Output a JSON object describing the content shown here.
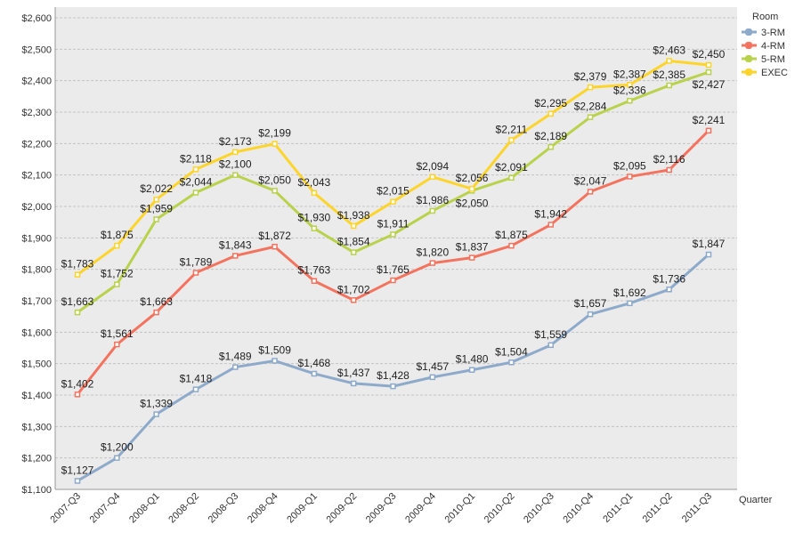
{
  "chart_data": {
    "type": "line",
    "title": "",
    "xlabel": "Quarter",
    "ylabel": "",
    "ylim": [
      1100,
      2600
    ],
    "ytick_step": 100,
    "grid": true,
    "legend_placement": "right",
    "legend_title": "Room",
    "categories": [
      "2007-Q3",
      "2007-Q4",
      "2008-Q1",
      "2008-Q2",
      "2008-Q3",
      "2008-Q4",
      "2009-Q1",
      "2009-Q2",
      "2009-Q3",
      "2009-Q4",
      "2010-Q1",
      "2010-Q2",
      "2010-Q3",
      "2010-Q4",
      "2011-Q1",
      "2011-Q2",
      "2011-Q3"
    ],
    "series": [
      {
        "name": "3-RM",
        "color": "#8eaacb",
        "values": [
          1127,
          1200,
          1339,
          1418,
          1489,
          1509,
          1468,
          1437,
          1428,
          1457,
          1480,
          1504,
          1559,
          1657,
          1692,
          1736,
          1847
        ]
      },
      {
        "name": "4-RM",
        "color": "#f4735f",
        "values": [
          1402,
          1561,
          1663,
          1789,
          1843,
          1872,
          1763,
          1702,
          1765,
          1820,
          1837,
          1875,
          1942,
          2047,
          2095,
          2116,
          2241
        ]
      },
      {
        "name": "5-RM",
        "color": "#b8d24c",
        "values": [
          1663,
          1752,
          1959,
          2044,
          2100,
          2050,
          1930,
          1854,
          1911,
          1986,
          2050,
          2091,
          2189,
          2284,
          2336,
          2385,
          2427
        ]
      },
      {
        "name": "EXEC",
        "color": "#fdd42b",
        "values": [
          1783,
          1875,
          2022,
          2118,
          2173,
          2199,
          2043,
          1938,
          2015,
          2094,
          2056,
          2211,
          2295,
          2379,
          2387,
          2463,
          2450
        ]
      }
    ]
  }
}
